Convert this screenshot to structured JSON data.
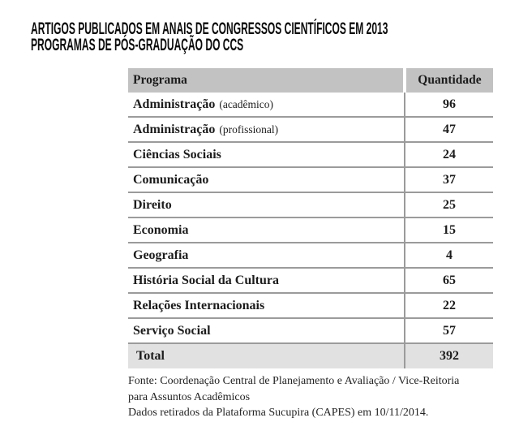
{
  "title": {
    "line1": "ARTIGOS PUBLICADOS EM ANAIS DE CONGRESSOS CIENTÍFICOS EM 2013",
    "line2": "PROGRAMAS DE PÓS-GRADUAÇÃO DO CCS"
  },
  "table": {
    "header": {
      "program": "Programa",
      "quantity": "Quantidade"
    },
    "rows": [
      {
        "program": "Administração",
        "note": "(acadêmico)",
        "quantity": "96"
      },
      {
        "program": "Administração",
        "note": "(profissional)",
        "quantity": "47"
      },
      {
        "program": "Ciências Sociais",
        "note": "",
        "quantity": "24"
      },
      {
        "program": "Comunicação",
        "note": "",
        "quantity": "37"
      },
      {
        "program": "Direito",
        "note": "",
        "quantity": "25"
      },
      {
        "program": "Economia",
        "note": "",
        "quantity": "15"
      },
      {
        "program": "Geografia",
        "note": "",
        "quantity": "4"
      },
      {
        "program": "História Social da Cultura",
        "note": "",
        "quantity": "65"
      },
      {
        "program": "Relações Internacionais",
        "note": "",
        "quantity": "22"
      },
      {
        "program": "Serviço Social",
        "note": "",
        "quantity": "57"
      }
    ],
    "total": {
      "label": "Total",
      "quantity": "392"
    }
  },
  "footer": {
    "line1": "Fonte: Coordenação Central de Planejamento e Avaliação / Vice-Reitoria",
    "line2": "para Assuntos Acadêmicos",
    "line3": "Dados retirados da Plataforma Sucupira (CAPES) em 10/11/2014."
  },
  "colors": {
    "header_bg": "#c2c2c2",
    "total_bg": "#e1e1e1",
    "divider": "#9b9b9b",
    "title_text": "#0b0b0b",
    "body_text": "#1c1c1c"
  },
  "chart_data": {
    "type": "table",
    "title": "ARTIGOS PUBLICADOS EM ANAIS DE CONGRESSOS CIENTÍFICOS EM 2013 — PROGRAMAS DE PÓS-GRADUAÇÃO DO CCS",
    "columns": [
      "Programa",
      "Quantidade"
    ],
    "rows": [
      [
        "Administração (acadêmico)",
        96
      ],
      [
        "Administração (profissional)",
        47
      ],
      [
        "Ciências Sociais",
        24
      ],
      [
        "Comunicação",
        37
      ],
      [
        "Direito",
        25
      ],
      [
        "Economia",
        15
      ],
      [
        "Geografia",
        4
      ],
      [
        "História Social da Cultura",
        65
      ],
      [
        "Relações Internacionais",
        22
      ],
      [
        "Serviço Social",
        57
      ],
      [
        "Total",
        392
      ]
    ]
  }
}
